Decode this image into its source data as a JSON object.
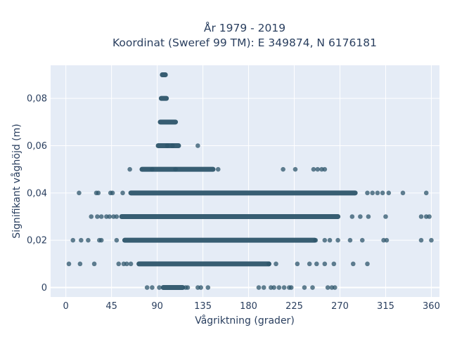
{
  "chart_data": {
    "type": "scatter",
    "title_line1": "År 1979 - 2019",
    "title_line2": "Koordinat (Sweref 99 TM): E 349874, N 6176181",
    "xlabel": "Vågriktning (grader)",
    "ylabel": "Signifikant våghöjd (m)",
    "xlim": [
      -15,
      368
    ],
    "ylim": [
      -0.004,
      0.094
    ],
    "xticks": [
      0,
      45,
      90,
      135,
      180,
      225,
      270,
      315,
      360
    ],
    "yticks": [
      0,
      0.02,
      0.04,
      0.06,
      0.08
    ],
    "ytick_labels": [
      "0",
      "0,02",
      "0,04",
      "0,06",
      "0,08"
    ],
    "grid": true,
    "marker_color": "#2e566b",
    "plot_bg": "#e5ecf6",
    "bands": [
      {
        "y": 0.09,
        "x_start": 95,
        "x_end": 98
      },
      {
        "y": 0.08,
        "x_start": 94,
        "x_end": 99
      },
      {
        "y": 0.07,
        "x_start": 93,
        "x_end": 108
      },
      {
        "y": 0.06,
        "x_start": 91,
        "x_end": 111
      },
      {
        "y": 0.05,
        "x_start": 75,
        "x_end": 145
      },
      {
        "y": 0.04,
        "x_start": 64,
        "x_end": 285
      },
      {
        "y": 0.03,
        "x_start": 55,
        "x_end": 268
      },
      {
        "y": 0.02,
        "x_start": 58,
        "x_end": 245
      },
      {
        "y": 0.01,
        "x_start": 72,
        "x_end": 200
      },
      {
        "y": 0.0,
        "x_start": 96,
        "x_end": 115
      }
    ],
    "points": [
      [
        205,
        0.0
      ],
      [
        210,
        0.0
      ],
      [
        222,
        0.0
      ],
      [
        235,
        0.0
      ],
      [
        262,
        0.0
      ],
      [
        265,
        0.0
      ],
      [
        215,
        0.0
      ],
      [
        220,
        0.0
      ],
      [
        243,
        0.0
      ],
      [
        258,
        0.0
      ],
      [
        190,
        0.0
      ],
      [
        130,
        0.0
      ],
      [
        133,
        0.0
      ],
      [
        195,
        0.0
      ],
      [
        202,
        0.0
      ],
      [
        140,
        0.0
      ],
      [
        63,
        0.05
      ],
      [
        85,
        0.05
      ],
      [
        108,
        0.05
      ],
      [
        150,
        0.05
      ],
      [
        214,
        0.05
      ],
      [
        226,
        0.05
      ],
      [
        244,
        0.05
      ],
      [
        248,
        0.05
      ],
      [
        252,
        0.05
      ],
      [
        255,
        0.05
      ],
      [
        100,
        0.06
      ],
      [
        105,
        0.06
      ],
      [
        130,
        0.06
      ],
      [
        13,
        0.04
      ],
      [
        30,
        0.04
      ],
      [
        32,
        0.04
      ],
      [
        44,
        0.04
      ],
      [
        46,
        0.04
      ],
      [
        56,
        0.04
      ],
      [
        297,
        0.04
      ],
      [
        302,
        0.04
      ],
      [
        307,
        0.04
      ],
      [
        312,
        0.04
      ],
      [
        318,
        0.04
      ],
      [
        332,
        0.04
      ],
      [
        355,
        0.04
      ],
      [
        25,
        0.03
      ],
      [
        31,
        0.03
      ],
      [
        35,
        0.03
      ],
      [
        40,
        0.03
      ],
      [
        43,
        0.03
      ],
      [
        47,
        0.03
      ],
      [
        50,
        0.03
      ],
      [
        282,
        0.03
      ],
      [
        290,
        0.03
      ],
      [
        298,
        0.03
      ],
      [
        315,
        0.03
      ],
      [
        350,
        0.03
      ],
      [
        355,
        0.03
      ],
      [
        358,
        0.03
      ],
      [
        7,
        0.02
      ],
      [
        15,
        0.02
      ],
      [
        22,
        0.02
      ],
      [
        33,
        0.02
      ],
      [
        35,
        0.02
      ],
      [
        50,
        0.02
      ],
      [
        246,
        0.02
      ],
      [
        255,
        0.02
      ],
      [
        260,
        0.02
      ],
      [
        268,
        0.02
      ],
      [
        280,
        0.02
      ],
      [
        292,
        0.02
      ],
      [
        313,
        0.02
      ],
      [
        316,
        0.02
      ],
      [
        350,
        0.02
      ],
      [
        360,
        0.02
      ],
      [
        3,
        0.01
      ],
      [
        14,
        0.01
      ],
      [
        28,
        0.01
      ],
      [
        52,
        0.01
      ],
      [
        57,
        0.01
      ],
      [
        60,
        0.01
      ],
      [
        64,
        0.01
      ],
      [
        200,
        0.01
      ],
      [
        207,
        0.01
      ],
      [
        228,
        0.01
      ],
      [
        240,
        0.01
      ],
      [
        247,
        0.01
      ],
      [
        255,
        0.01
      ],
      [
        264,
        0.01
      ],
      [
        283,
        0.01
      ],
      [
        297,
        0.01
      ],
      [
        80,
        0.0
      ],
      [
        85,
        0.0
      ],
      [
        92,
        0.0
      ],
      [
        118,
        0.0
      ],
      [
        120,
        0.0
      ]
    ]
  }
}
